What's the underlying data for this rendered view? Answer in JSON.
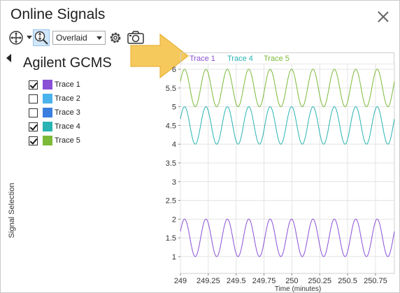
{
  "window": {
    "title": "Online Signals"
  },
  "toolbar": {
    "icons": [
      "pan-icon",
      "zoom-icon",
      "gear-icon",
      "camera-icon"
    ],
    "mode_select_value": "Overlaid"
  },
  "panel": {
    "instrument": "Agilent GCMS",
    "vertical_label": "Signal Selection",
    "signals": [
      {
        "label": "Trace 1",
        "checked": true,
        "color": "#8a50d6"
      },
      {
        "label": "Trace 2",
        "checked": false,
        "color": "#4ab2ec"
      },
      {
        "label": "Trace 3",
        "checked": false,
        "color": "#3a7ee0"
      },
      {
        "label": "Trace 4",
        "checked": true,
        "color": "#2ab3b3"
      },
      {
        "label": "Trace 5",
        "checked": true,
        "color": "#7cba38"
      }
    ]
  },
  "chart_data": {
    "type": "line",
    "xlabel": "Time (minutes)",
    "ylabel": "",
    "xlim": [
      249,
      250.92
    ],
    "ylim": [
      0.55,
      6.15
    ],
    "xticks": [
      249,
      249.25,
      249.5,
      249.75,
      250,
      250.25,
      250.5,
      250.75
    ],
    "xtick_labels": [
      "249",
      "249.25",
      "249.5",
      "249.75",
      "250",
      "250.25",
      "250.5",
      "250.75"
    ],
    "yticks": [
      1,
      1.5,
      2,
      2.5,
      3,
      3.5,
      4,
      4.5,
      5,
      5.5,
      6
    ],
    "ytick_labels": [
      "1",
      "1.5",
      "2",
      "2.5",
      "3",
      "3.5",
      "4",
      "4.5",
      "5",
      "5.5",
      "6"
    ],
    "grid": true,
    "legend_position": "top",
    "series": [
      {
        "name": "Trace 1",
        "color": "#8a50d6",
        "center": 1.5,
        "amplitude": 0.5,
        "cycles": 10,
        "phase": 0.0
      },
      {
        "name": "Trace 4",
        "color": "#2ab3b3",
        "center": 4.5,
        "amplitude": 0.5,
        "cycles": 10,
        "phase": 0.0
      },
      {
        "name": "Trace 5",
        "color": "#7cba38",
        "center": 5.5,
        "amplitude": 0.5,
        "cycles": 10,
        "phase": 0.0
      }
    ]
  }
}
